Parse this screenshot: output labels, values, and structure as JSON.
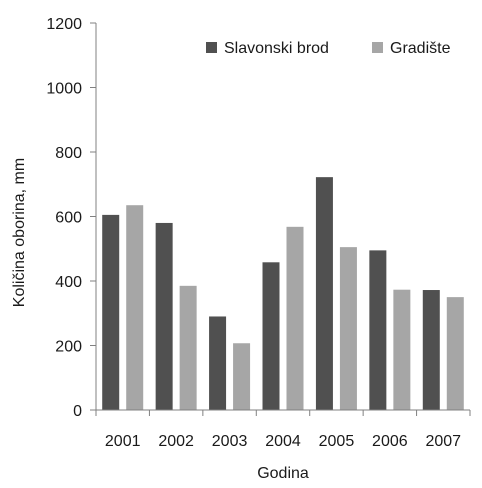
{
  "chart_data": {
    "type": "bar",
    "categories": [
      "2001",
      "2002",
      "2003",
      "2004",
      "2005",
      "2006",
      "2007"
    ],
    "series": [
      {
        "name": "Slavonski brod",
        "values": [
          605,
          580,
          290,
          458,
          722,
          495,
          372
        ],
        "color": "#505050"
      },
      {
        "name": "Gradište",
        "values": [
          635,
          385,
          207,
          568,
          505,
          373,
          350
        ],
        "color": "#a6a6a6"
      }
    ],
    "title": "",
    "xlabel": "Godina",
    "ylabel": "Količina oborina, mm",
    "ylim": [
      0,
      1200
    ],
    "yticks": [
      0,
      200,
      400,
      600,
      800,
      1000,
      1200
    ],
    "grid": false,
    "legend_position": "top-right"
  }
}
